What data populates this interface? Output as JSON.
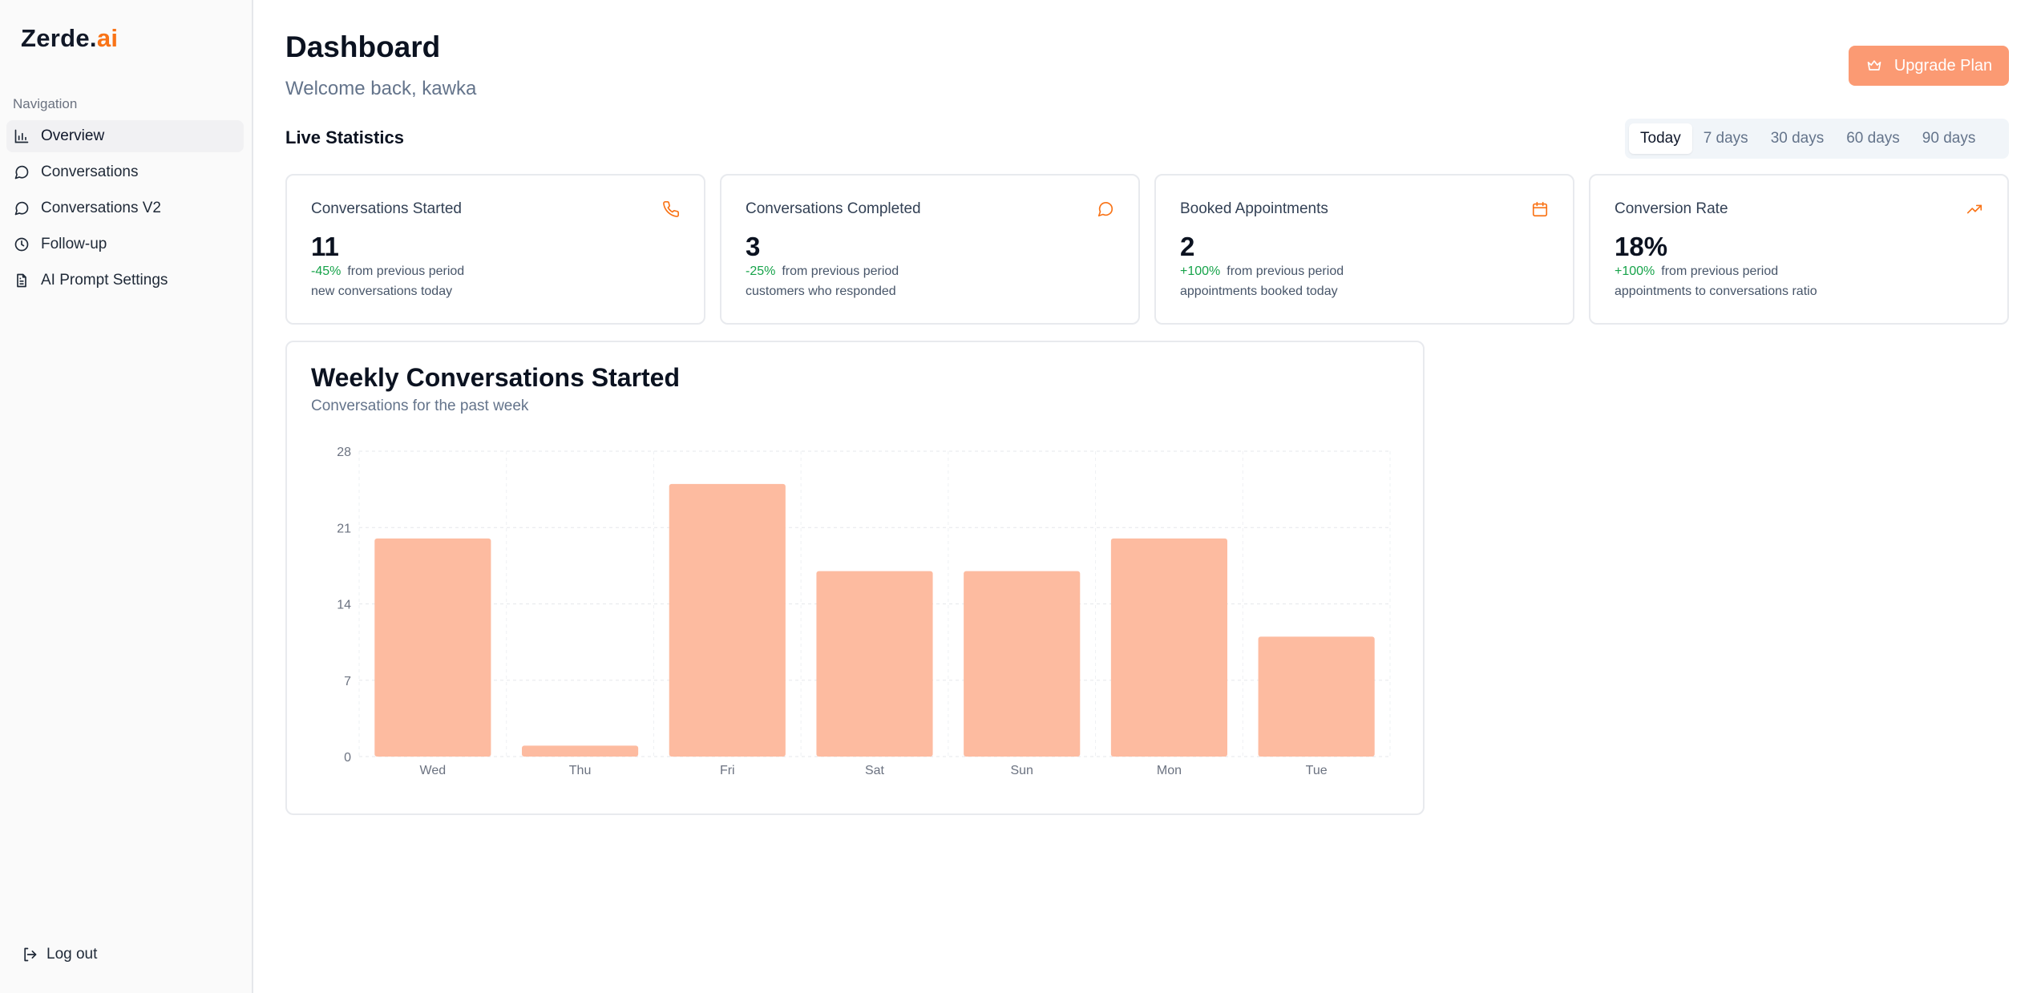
{
  "app": {
    "logo_main": "Zerde.",
    "logo_accent": "ai"
  },
  "sidebar": {
    "heading": "Navigation",
    "items": [
      {
        "label": "Overview",
        "icon": "bar-chart-icon",
        "active": true
      },
      {
        "label": "Conversations",
        "icon": "message-circle-icon",
        "active": false
      },
      {
        "label": "Conversations V2",
        "icon": "message-circle-icon",
        "active": false
      },
      {
        "label": "Follow-up",
        "icon": "clock-icon",
        "active": false
      },
      {
        "label": "AI Prompt Settings",
        "icon": "file-text-icon",
        "active": false
      }
    ],
    "logout_label": "Log out"
  },
  "header": {
    "title": "Dashboard",
    "subtitle": "Welcome back, kawka",
    "upgrade_label": "Upgrade Plan"
  },
  "stats": {
    "section_title": "Live Statistics",
    "ranges": [
      "Today",
      "7 days",
      "30 days",
      "60 days",
      "90 days"
    ],
    "active_range": "Today",
    "cards": [
      {
        "title": "Conversations Started",
        "value": "11",
        "change": "-45%",
        "change_text": "from previous period",
        "desc": "new conversations today",
        "icon": "phone-icon"
      },
      {
        "title": "Conversations Completed",
        "value": "3",
        "change": "-25%",
        "change_text": "from previous period",
        "desc": "customers who responded",
        "icon": "message-circle-icon"
      },
      {
        "title": "Booked Appointments",
        "value": "2",
        "change": "+100%",
        "change_text": "from previous period",
        "desc": "appointments booked today",
        "icon": "calendar-icon"
      },
      {
        "title": "Conversion Rate",
        "value": "18%",
        "change": "+100%",
        "change_text": "from previous period",
        "desc": "appointments to conversations ratio",
        "icon": "trending-up-icon"
      }
    ]
  },
  "colors": {
    "accent": "#f97316",
    "button": "#fb9a73",
    "bar": "#fdbba0",
    "positive": "#16a34a"
  },
  "chart_data": {
    "type": "bar",
    "title": "Weekly Conversations Started",
    "subtitle": "Conversations for the past week",
    "categories": [
      "Wed",
      "Thu",
      "Fri",
      "Sat",
      "Sun",
      "Mon",
      "Tue"
    ],
    "values": [
      20,
      1,
      25,
      17,
      17,
      20,
      11
    ],
    "yticks": [
      0,
      7,
      14,
      21,
      28
    ],
    "ylim": [
      0,
      28
    ],
    "grid": true,
    "xlabel": "",
    "ylabel": ""
  }
}
